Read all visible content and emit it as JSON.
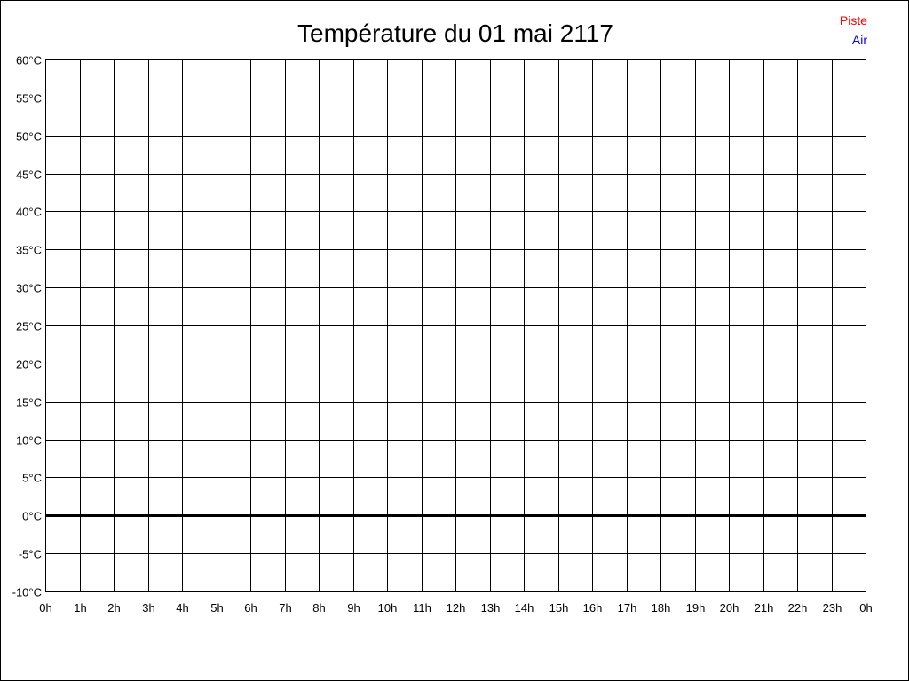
{
  "chart_data": {
    "type": "line",
    "title": "Température du 01 mai 2117",
    "xlabel": "",
    "ylabel": "",
    "x_ticks": [
      "0h",
      "1h",
      "2h",
      "3h",
      "4h",
      "5h",
      "6h",
      "7h",
      "8h",
      "9h",
      "10h",
      "11h",
      "12h",
      "13h",
      "14h",
      "15h",
      "16h",
      "17h",
      "18h",
      "19h",
      "20h",
      "21h",
      "22h",
      "23h",
      "0h"
    ],
    "y_ticks": [
      60,
      55,
      50,
      45,
      40,
      35,
      30,
      25,
      20,
      15,
      10,
      5,
      0,
      -5,
      -10
    ],
    "y_unit": "°C",
    "ylim": [
      -10,
      60
    ],
    "xlim": [
      0,
      24
    ],
    "grid": true,
    "legend_position": "top-right",
    "series": [
      {
        "name": "Piste",
        "color": "#ff0000",
        "values": []
      },
      {
        "name": "Air",
        "color": "#0000ff",
        "values": []
      }
    ]
  }
}
